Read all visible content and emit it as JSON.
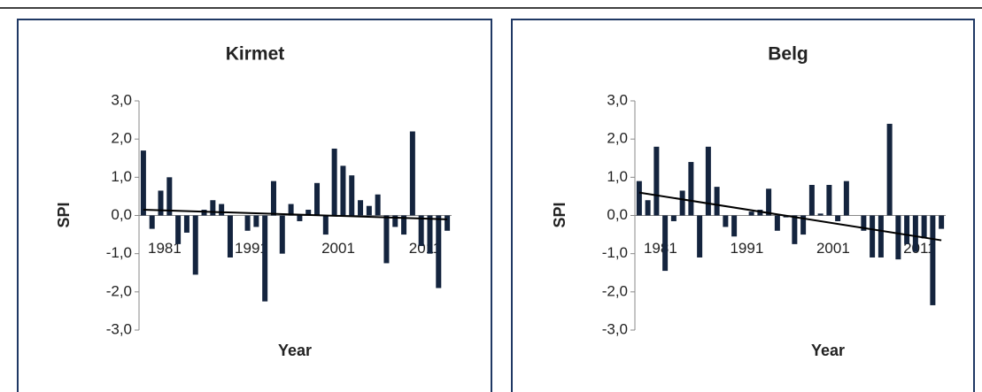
{
  "chart_data": [
    {
      "type": "bar",
      "title": "Kirmet",
      "ylabel": "SPI",
      "xlabel": "Year",
      "color": "#14243e",
      "trend_color": "#000000",
      "categories": [
        "1981",
        null,
        null,
        null,
        null,
        null,
        null,
        null,
        null,
        null,
        "1991",
        null,
        null,
        null,
        null,
        null,
        null,
        null,
        null,
        null,
        "2001",
        null,
        null,
        null,
        null,
        null,
        null,
        null,
        null,
        null,
        "2011",
        null,
        null,
        null,
        null,
        null
      ],
      "values": [
        1.7,
        -0.35,
        0.65,
        1.0,
        -0.75,
        -0.45,
        -1.55,
        0.15,
        0.4,
        0.3,
        -1.1,
        0.0,
        -0.4,
        -0.3,
        -2.25,
        0.9,
        -1.0,
        0.3,
        -0.15,
        0.15,
        0.85,
        -0.5,
        1.75,
        1.3,
        1.05,
        0.4,
        0.25,
        0.55,
        -1.25,
        -0.3,
        -0.5,
        2.2,
        -0.8,
        -1.0,
        -1.9,
        -0.4
      ],
      "trend": [
        0.15,
        -0.1
      ],
      "ylim": [
        -3,
        3
      ],
      "yticks": [
        {
          "value": -3,
          "label": "-3,0"
        },
        {
          "value": -2,
          "label": "-2,0"
        },
        {
          "value": -1,
          "label": "-1,0"
        },
        {
          "value": 0,
          "label": "0,0"
        },
        {
          "value": 1,
          "label": "1,0"
        },
        {
          "value": 2,
          "label": "2,0"
        },
        {
          "value": 3,
          "label": "3,0"
        }
      ]
    },
    {
      "type": "bar",
      "title": "Belg",
      "ylabel": "SPI",
      "xlabel": "Year",
      "color": "#14243e",
      "trend_color": "#000000",
      "categories": [
        "1981",
        null,
        null,
        null,
        null,
        null,
        null,
        null,
        null,
        null,
        "1991",
        null,
        null,
        null,
        null,
        null,
        null,
        null,
        null,
        null,
        "2001",
        null,
        null,
        null,
        null,
        null,
        null,
        null,
        null,
        null,
        "2011",
        null,
        null,
        null,
        null,
        null
      ],
      "values": [
        0.9,
        0.4,
        1.8,
        -1.45,
        -0.15,
        0.65,
        1.4,
        -1.1,
        1.8,
        0.75,
        -0.3,
        -0.55,
        0.0,
        0.1,
        0.15,
        0.7,
        -0.4,
        -0.05,
        -0.75,
        -0.5,
        0.8,
        0.05,
        0.8,
        -0.15,
        0.9,
        0.0,
        -0.4,
        -1.1,
        -1.1,
        2.4,
        -1.15,
        -0.75,
        -0.95,
        -0.6,
        -2.35,
        -0.35
      ],
      "trend": [
        0.6,
        -0.65
      ],
      "ylim": [
        -3,
        3
      ],
      "yticks": [
        {
          "value": -3,
          "label": "-3,0"
        },
        {
          "value": -2,
          "label": "-2,0"
        },
        {
          "value": -1,
          "label": "-1,0"
        },
        {
          "value": 0,
          "label": "0,0"
        },
        {
          "value": 1,
          "label": "1,0"
        },
        {
          "value": 2,
          "label": "2,0"
        },
        {
          "value": 3,
          "label": "3,0"
        }
      ]
    }
  ]
}
